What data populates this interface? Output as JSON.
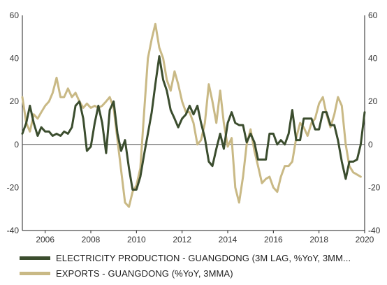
{
  "chart_data": {
    "type": "line",
    "title": "",
    "xlabel": "",
    "ylabel": "",
    "x_ticks": [
      "2006",
      "2008",
      "2010",
      "2012",
      "2014",
      "2016",
      "2018",
      "2020"
    ],
    "xlim": [
      2005.0,
      2020.0
    ],
    "ylim": [
      -40,
      60
    ],
    "y_ticks_left": [
      "60",
      "40",
      "20",
      "0",
      "-20",
      "-40"
    ],
    "y_ticks_right": [
      "60",
      "40",
      "20",
      "0",
      "-20",
      "-40"
    ],
    "grid": false,
    "zero_line": true,
    "legend_position": "bottom",
    "series": [
      {
        "name": "ELECTRICITY PRODUCTION - GUANGDONG (3M LAG, %YoY, 3MM...",
        "color": "#3b4d2e",
        "points": [
          [
            2005.0,
            5
          ],
          [
            2005.17,
            10
          ],
          [
            2005.33,
            18
          ],
          [
            2005.5,
            10
          ],
          [
            2005.67,
            4
          ],
          [
            2005.83,
            8
          ],
          [
            2006.0,
            6
          ],
          [
            2006.17,
            6
          ],
          [
            2006.33,
            4
          ],
          [
            2006.5,
            5
          ],
          [
            2006.67,
            4
          ],
          [
            2006.83,
            6
          ],
          [
            2007.0,
            5
          ],
          [
            2007.17,
            8
          ],
          [
            2007.33,
            18
          ],
          [
            2007.5,
            20
          ],
          [
            2007.67,
            12
          ],
          [
            2007.83,
            -3
          ],
          [
            2008.0,
            -1
          ],
          [
            2008.17,
            10
          ],
          [
            2008.33,
            18
          ],
          [
            2008.5,
            10
          ],
          [
            2008.67,
            -4
          ],
          [
            2008.83,
            16
          ],
          [
            2009.0,
            20
          ],
          [
            2009.17,
            5
          ],
          [
            2009.33,
            -3
          ],
          [
            2009.5,
            2
          ],
          [
            2009.67,
            -11
          ],
          [
            2009.83,
            -21
          ],
          [
            2010.0,
            -21
          ],
          [
            2010.17,
            -15
          ],
          [
            2010.33,
            -5
          ],
          [
            2010.5,
            5
          ],
          [
            2010.67,
            15
          ],
          [
            2010.83,
            28
          ],
          [
            2011.0,
            41
          ],
          [
            2011.17,
            30
          ],
          [
            2011.33,
            25
          ],
          [
            2011.5,
            16
          ],
          [
            2011.67,
            12
          ],
          [
            2011.83,
            8
          ],
          [
            2012.0,
            12
          ],
          [
            2012.17,
            14
          ],
          [
            2012.33,
            18
          ],
          [
            2012.5,
            14
          ],
          [
            2012.67,
            18
          ],
          [
            2012.83,
            10
          ],
          [
            2013.0,
            3
          ],
          [
            2013.17,
            -8
          ],
          [
            2013.33,
            -10
          ],
          [
            2013.5,
            -2
          ],
          [
            2013.67,
            5
          ],
          [
            2013.83,
            -2
          ],
          [
            2014.0,
            10
          ],
          [
            2014.17,
            15
          ],
          [
            2014.33,
            10
          ],
          [
            2014.5,
            9
          ],
          [
            2014.67,
            9
          ],
          [
            2014.83,
            1
          ],
          [
            2015.0,
            5
          ],
          [
            2015.17,
            1
          ],
          [
            2015.33,
            -7
          ],
          [
            2015.5,
            -7
          ],
          [
            2015.67,
            -7
          ],
          [
            2015.83,
            5
          ],
          [
            2016.0,
            5
          ],
          [
            2016.17,
            0
          ],
          [
            2016.33,
            2
          ],
          [
            2016.5,
            0
          ],
          [
            2016.67,
            5
          ],
          [
            2016.83,
            16
          ],
          [
            2017.0,
            2
          ],
          [
            2017.17,
            2
          ],
          [
            2017.33,
            12
          ],
          [
            2017.5,
            12
          ],
          [
            2017.67,
            12
          ],
          [
            2017.83,
            7
          ],
          [
            2018.0,
            7
          ],
          [
            2018.17,
            15
          ],
          [
            2018.33,
            15
          ],
          [
            2018.5,
            9
          ],
          [
            2018.67,
            9
          ],
          [
            2018.83,
            2
          ],
          [
            2019.0,
            -8
          ],
          [
            2019.17,
            -16
          ],
          [
            2019.33,
            -8
          ],
          [
            2019.5,
            -8
          ],
          [
            2019.67,
            -7
          ],
          [
            2019.83,
            0
          ],
          [
            2020.0,
            15
          ]
        ]
      },
      {
        "name": "EXPORTS - GUANGDONG (%YoY, 3MMA)",
        "color": "#c9b985",
        "points": [
          [
            2005.0,
            22
          ],
          [
            2005.17,
            10
          ],
          [
            2005.33,
            6
          ],
          [
            2005.5,
            14
          ],
          [
            2005.67,
            12
          ],
          [
            2005.83,
            15
          ],
          [
            2006.0,
            18
          ],
          [
            2006.17,
            20
          ],
          [
            2006.33,
            24
          ],
          [
            2006.5,
            31
          ],
          [
            2006.67,
            22
          ],
          [
            2006.83,
            22
          ],
          [
            2007.0,
            26
          ],
          [
            2007.17,
            22
          ],
          [
            2007.33,
            24
          ],
          [
            2007.5,
            20
          ],
          [
            2007.67,
            17
          ],
          [
            2007.83,
            19
          ],
          [
            2008.0,
            17
          ],
          [
            2008.17,
            18
          ],
          [
            2008.33,
            17
          ],
          [
            2008.5,
            18
          ],
          [
            2008.67,
            20
          ],
          [
            2008.83,
            22
          ],
          [
            2009.0,
            17
          ],
          [
            2009.17,
            2
          ],
          [
            2009.33,
            -12
          ],
          [
            2009.5,
            -27
          ],
          [
            2009.67,
            -29
          ],
          [
            2009.83,
            -22
          ],
          [
            2010.0,
            -19
          ],
          [
            2010.17,
            -11
          ],
          [
            2010.33,
            14
          ],
          [
            2010.5,
            40
          ],
          [
            2010.67,
            49
          ],
          [
            2010.83,
            56
          ],
          [
            2011.0,
            45
          ],
          [
            2011.17,
            40
          ],
          [
            2011.33,
            30
          ],
          [
            2011.5,
            25
          ],
          [
            2011.67,
            34
          ],
          [
            2011.83,
            28
          ],
          [
            2012.0,
            20
          ],
          [
            2012.17,
            15
          ],
          [
            2012.33,
            15
          ],
          [
            2012.5,
            10
          ],
          [
            2012.67,
            0
          ],
          [
            2012.83,
            2
          ],
          [
            2013.0,
            10
          ],
          [
            2013.17,
            28
          ],
          [
            2013.33,
            20
          ],
          [
            2013.5,
            10
          ],
          [
            2013.67,
            25
          ],
          [
            2013.83,
            10
          ],
          [
            2014.0,
            -1
          ],
          [
            2014.17,
            3
          ],
          [
            2014.33,
            -20
          ],
          [
            2014.5,
            -27
          ],
          [
            2014.67,
            -15
          ],
          [
            2014.83,
            0
          ],
          [
            2015.0,
            7
          ],
          [
            2015.17,
            -3
          ],
          [
            2015.33,
            -10
          ],
          [
            2015.5,
            -18
          ],
          [
            2015.67,
            -16
          ],
          [
            2015.83,
            -15
          ],
          [
            2016.0,
            -20
          ],
          [
            2016.17,
            -22
          ],
          [
            2016.33,
            -15
          ],
          [
            2016.5,
            -10
          ],
          [
            2016.67,
            -10
          ],
          [
            2016.83,
            -8
          ],
          [
            2017.0,
            3
          ],
          [
            2017.17,
            10
          ],
          [
            2017.33,
            8
          ],
          [
            2017.5,
            4
          ],
          [
            2017.67,
            10
          ],
          [
            2017.83,
            12
          ],
          [
            2018.0,
            19
          ],
          [
            2018.17,
            22
          ],
          [
            2018.33,
            14
          ],
          [
            2018.5,
            8
          ],
          [
            2018.67,
            14
          ],
          [
            2018.83,
            22
          ],
          [
            2019.0,
            18
          ],
          [
            2019.17,
            0
          ],
          [
            2019.33,
            -10
          ],
          [
            2019.5,
            -13
          ],
          [
            2019.67,
            -14
          ],
          [
            2019.83,
            -15
          ]
        ]
      }
    ]
  }
}
